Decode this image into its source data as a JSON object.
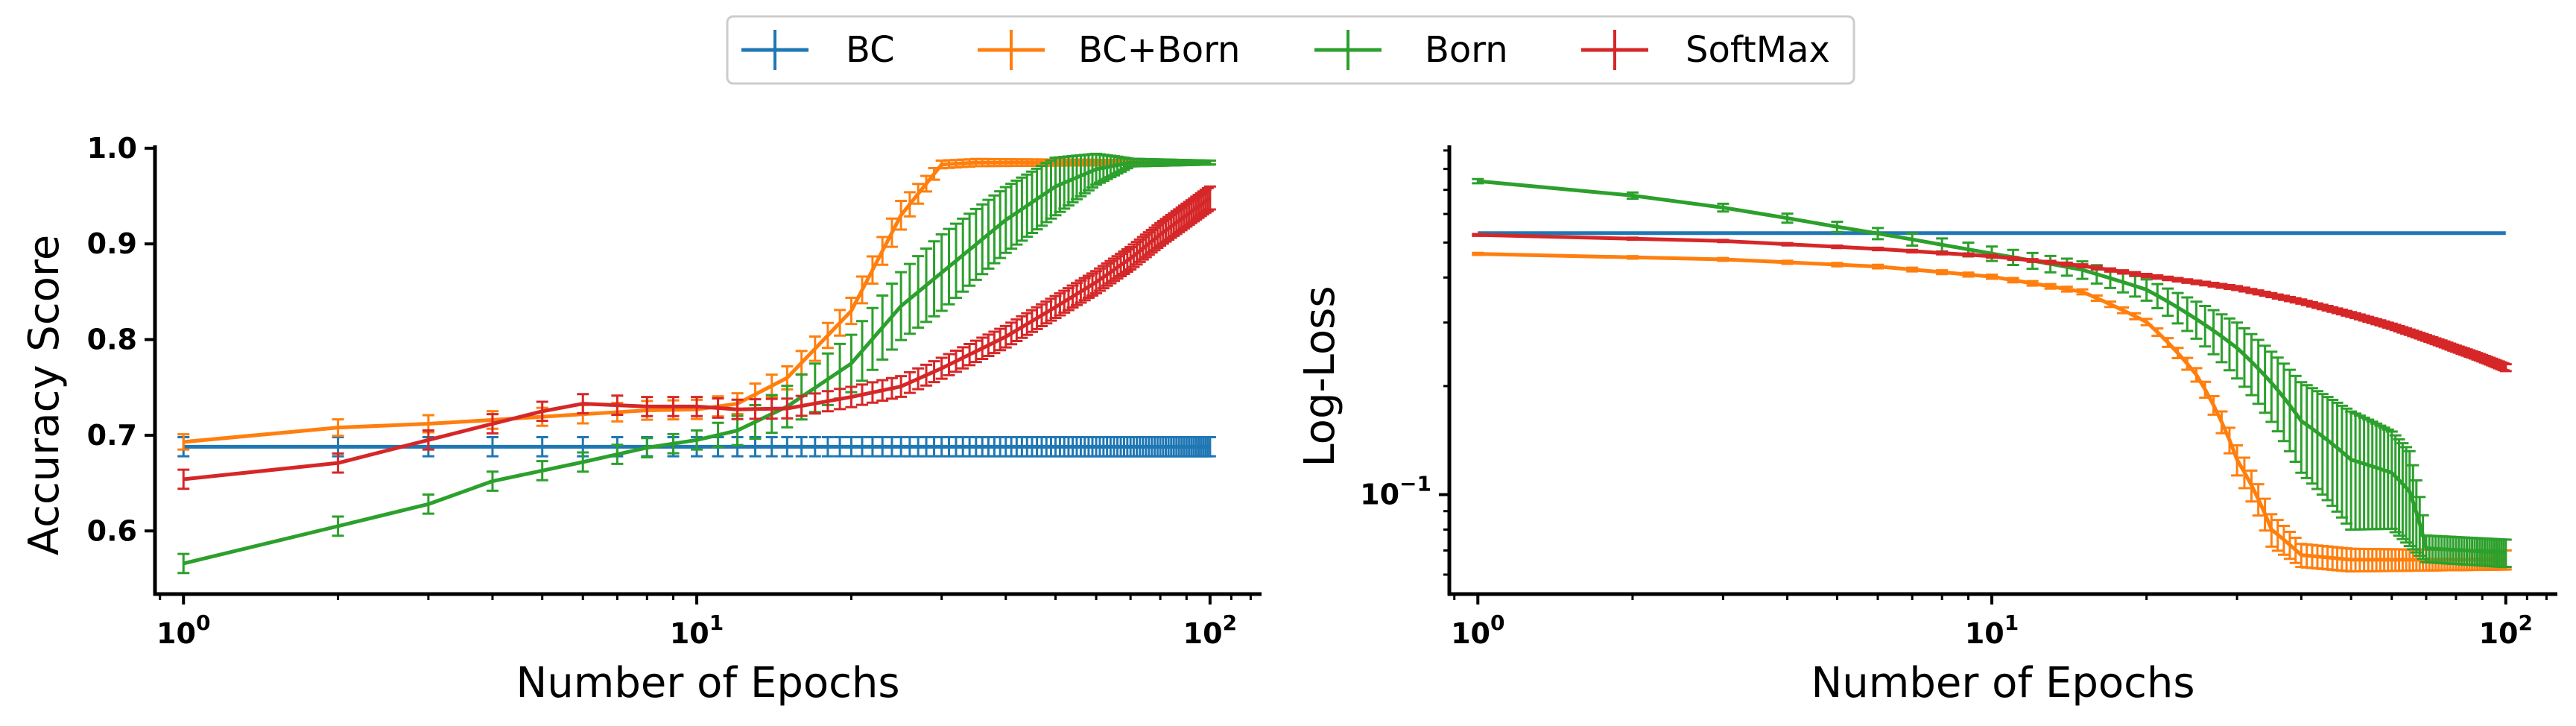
{
  "colors": {
    "BC": "#1f77b4",
    "BC+Born": "#ff7f0e",
    "Born": "#2ca02c",
    "SoftMax": "#d62728"
  },
  "legend": [
    "BC",
    "BC+Born",
    "Born",
    "SoftMax"
  ],
  "chart_data": [
    {
      "type": "line",
      "xlabel": "Number of Epochs",
      "ylabel": "Accuracy Score",
      "xscale": "log",
      "xlim": [
        0.88,
        126
      ],
      "ylim": [
        0.534,
        1.003
      ],
      "yticks": [
        "0.6",
        "0.7",
        "0.8",
        "0.9",
        "1.0"
      ],
      "ytick_values": [
        0.6,
        0.7,
        0.8,
        0.9,
        1.0
      ],
      "xticks": [
        "10^0",
        "10^1",
        "10^2"
      ],
      "error_bars": true,
      "series": [
        {
          "name": "BC",
          "anchors": [
            [
              1,
              0.688
            ],
            [
              100,
              0.688
            ]
          ],
          "err": [
            [
              1,
              0.01
            ],
            [
              100,
              0.01
            ]
          ]
        },
        {
          "name": "BC+Born",
          "anchors": [
            [
              1,
              0.693
            ],
            [
              2,
              0.708
            ],
            [
              3,
              0.712
            ],
            [
              4,
              0.716
            ],
            [
              6,
              0.722
            ],
            [
              8,
              0.726
            ],
            [
              10,
              0.727
            ],
            [
              12,
              0.733
            ],
            [
              15,
              0.76
            ],
            [
              20,
              0.83
            ],
            [
              25,
              0.93
            ],
            [
              30,
              0.983
            ],
            [
              35,
              0.985
            ],
            [
              50,
              0.985
            ],
            [
              100,
              0.985
            ]
          ],
          "err": [
            [
              1,
              0.008
            ],
            [
              10,
              0.01
            ],
            [
              15,
              0.012
            ],
            [
              25,
              0.015
            ],
            [
              30,
              0.004
            ],
            [
              100,
              0.002
            ]
          ]
        },
        {
          "name": "Born",
          "anchors": [
            [
              1,
              0.566
            ],
            [
              2,
              0.605
            ],
            [
              3,
              0.628
            ],
            [
              4,
              0.652
            ],
            [
              6,
              0.672
            ],
            [
              8,
              0.687
            ],
            [
              10,
              0.695
            ],
            [
              12,
              0.705
            ],
            [
              15,
              0.73
            ],
            [
              20,
              0.775
            ],
            [
              25,
              0.835
            ],
            [
              30,
              0.87
            ],
            [
              40,
              0.925
            ],
            [
              50,
              0.96
            ],
            [
              60,
              0.978
            ],
            [
              70,
              0.985
            ],
            [
              100,
              0.985
            ]
          ],
          "err": [
            [
              1,
              0.01
            ],
            [
              10,
              0.01
            ],
            [
              20,
              0.03
            ],
            [
              30,
              0.04
            ],
            [
              50,
              0.03
            ],
            [
              65,
              0.01
            ],
            [
              70,
              0.004
            ],
            [
              100,
              0.002
            ]
          ]
        },
        {
          "name": "SoftMax",
          "anchors": [
            [
              1,
              0.654
            ],
            [
              2,
              0.671
            ],
            [
              3,
              0.695
            ],
            [
              4,
              0.712
            ],
            [
              5,
              0.725
            ],
            [
              6,
              0.733
            ],
            [
              8,
              0.73
            ],
            [
              10,
              0.73
            ],
            [
              12,
              0.727
            ],
            [
              15,
              0.728
            ],
            [
              20,
              0.74
            ],
            [
              25,
              0.751
            ],
            [
              30,
              0.77
            ],
            [
              40,
              0.803
            ],
            [
              50,
              0.834
            ],
            [
              60,
              0.86
            ],
            [
              70,
              0.885
            ],
            [
              80,
              0.91
            ],
            [
              90,
              0.93
            ],
            [
              100,
              0.948
            ]
          ],
          "err": [
            [
              1,
              0.01
            ],
            [
              10,
              0.01
            ],
            [
              100,
              0.012
            ]
          ]
        }
      ]
    },
    {
      "type": "line",
      "xlabel": "Number of Epochs",
      "ylabel": "Log-Loss",
      "xscale": "log",
      "yscale": "log",
      "xlim": [
        0.88,
        126
      ],
      "ylim": [
        0.053,
        0.93
      ],
      "yticks": [
        "10^−1"
      ],
      "ytick_values": [
        0.1
      ],
      "xticks": [
        "10^0",
        "10^1",
        "10^2"
      ],
      "error_bars": true,
      "series": [
        {
          "name": "BC",
          "anchors": [
            [
              1,
              0.531
            ],
            [
              100,
              0.531
            ]
          ],
          "err": [
            [
              1,
              0.0
            ],
            [
              100,
              0.0
            ]
          ]
        },
        {
          "name": "BC+Born",
          "anchors": [
            [
              1,
              0.465
            ],
            [
              3,
              0.449
            ],
            [
              6,
              0.429
            ],
            [
              10,
              0.402
            ],
            [
              15,
              0.365
            ],
            [
              20,
              0.301
            ],
            [
              25,
              0.215
            ],
            [
              30,
              0.125
            ],
            [
              35,
              0.08
            ],
            [
              40,
              0.068
            ],
            [
              50,
              0.066
            ],
            [
              100,
              0.066
            ]
          ],
          "err": [
            [
              1,
              0.003
            ],
            [
              20,
              0.006
            ],
            [
              30,
              0.012
            ],
            [
              40,
              0.005
            ],
            [
              100,
              0.004
            ]
          ]
        },
        {
          "name": "Born",
          "anchors": [
            [
              1,
              0.74
            ],
            [
              2,
              0.675
            ],
            [
              3,
              0.625
            ],
            [
              5,
              0.553
            ],
            [
              8,
              0.493
            ],
            [
              10,
              0.466
            ],
            [
              15,
              0.42
            ],
            [
              20,
              0.37
            ],
            [
              30,
              0.255
            ],
            [
              40,
              0.16
            ],
            [
              50,
              0.125
            ],
            [
              60,
              0.115
            ],
            [
              65,
              0.102
            ],
            [
              70,
              0.071
            ],
            [
              100,
              0.069
            ]
          ],
          "err": [
            [
              1,
              0.01
            ],
            [
              20,
              0.025
            ],
            [
              30,
              0.045
            ],
            [
              50,
              0.045
            ],
            [
              65,
              0.03
            ],
            [
              70,
              0.006
            ],
            [
              100,
              0.006
            ]
          ]
        },
        {
          "name": "SoftMax",
          "anchors": [
            [
              1,
              0.525
            ],
            [
              3,
              0.505
            ],
            [
              6,
              0.48
            ],
            [
              10,
              0.458
            ],
            [
              15,
              0.431
            ],
            [
              20,
              0.405
            ],
            [
              30,
              0.374
            ],
            [
              40,
              0.343
            ],
            [
              50,
              0.316
            ],
            [
              60,
              0.293
            ],
            [
              70,
              0.272
            ],
            [
              80,
              0.254
            ],
            [
              90,
              0.239
            ],
            [
              100,
              0.225
            ]
          ],
          "err": [
            [
              1,
              0.003
            ],
            [
              100,
              0.005
            ]
          ]
        }
      ]
    }
  ]
}
